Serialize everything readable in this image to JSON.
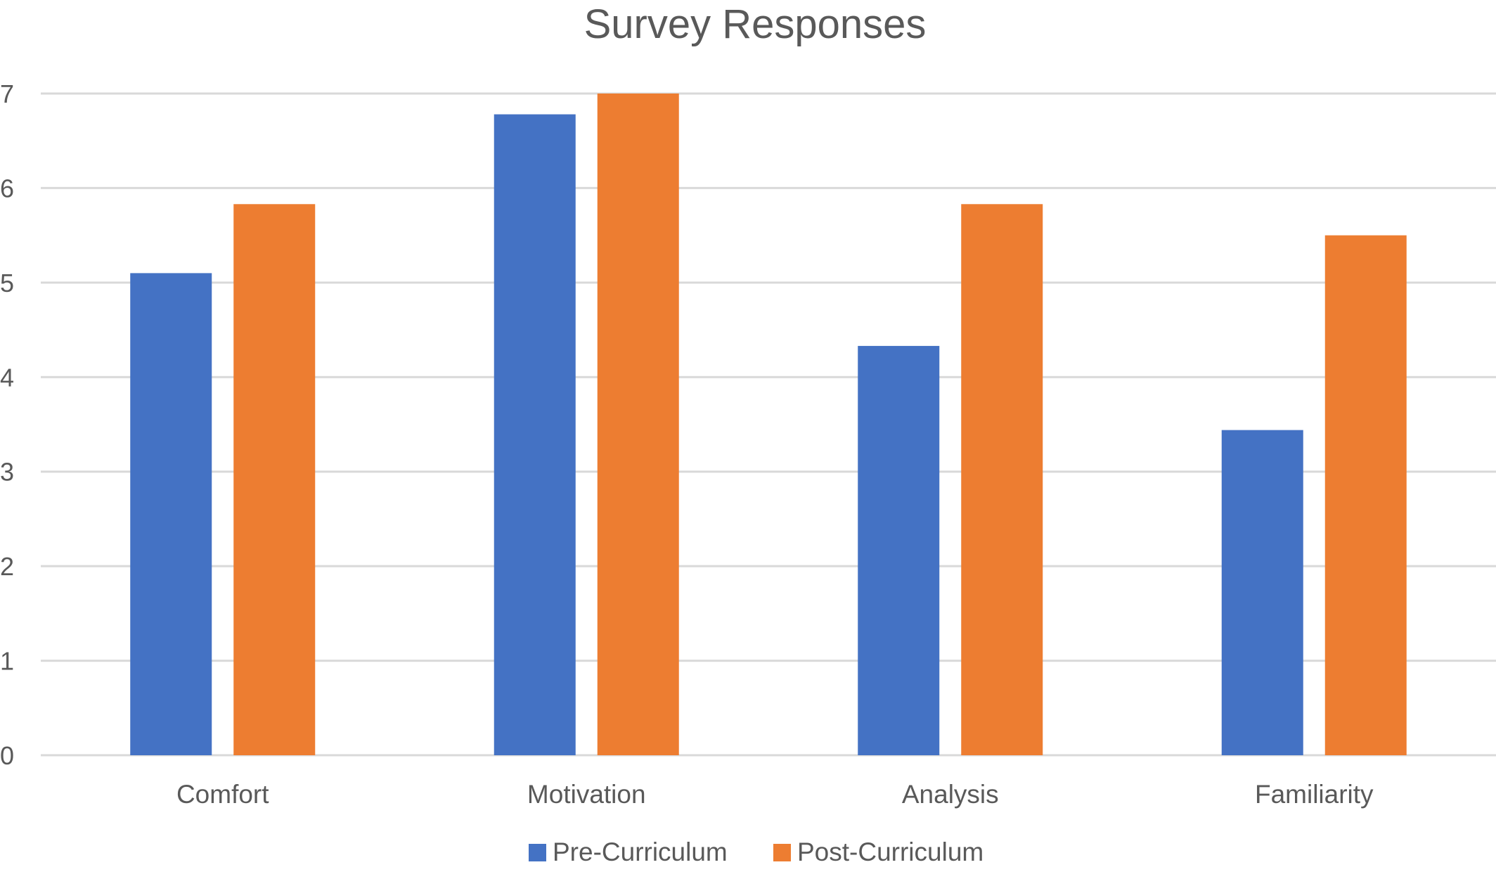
{
  "chart_data": {
    "type": "bar",
    "title": "Survey Responses",
    "xlabel": "",
    "ylabel": "",
    "categories": [
      "Comfort",
      "Motivation",
      "Analysis",
      "Familiarity"
    ],
    "series": [
      {
        "name": "Pre-Curriculum",
        "color": "#4472c4",
        "values": [
          5.1,
          6.78,
          4.33,
          3.44
        ]
      },
      {
        "name": "Post-Curriculum",
        "color": "#ed7d31",
        "values": [
          5.83,
          7.0,
          5.83,
          5.5
        ]
      }
    ],
    "ylim": [
      0,
      7
    ],
    "yticks": [
      "0",
      "1",
      "2",
      "3",
      "4",
      "5",
      "6",
      "7"
    ],
    "grid": true,
    "legend_position": "bottom"
  }
}
